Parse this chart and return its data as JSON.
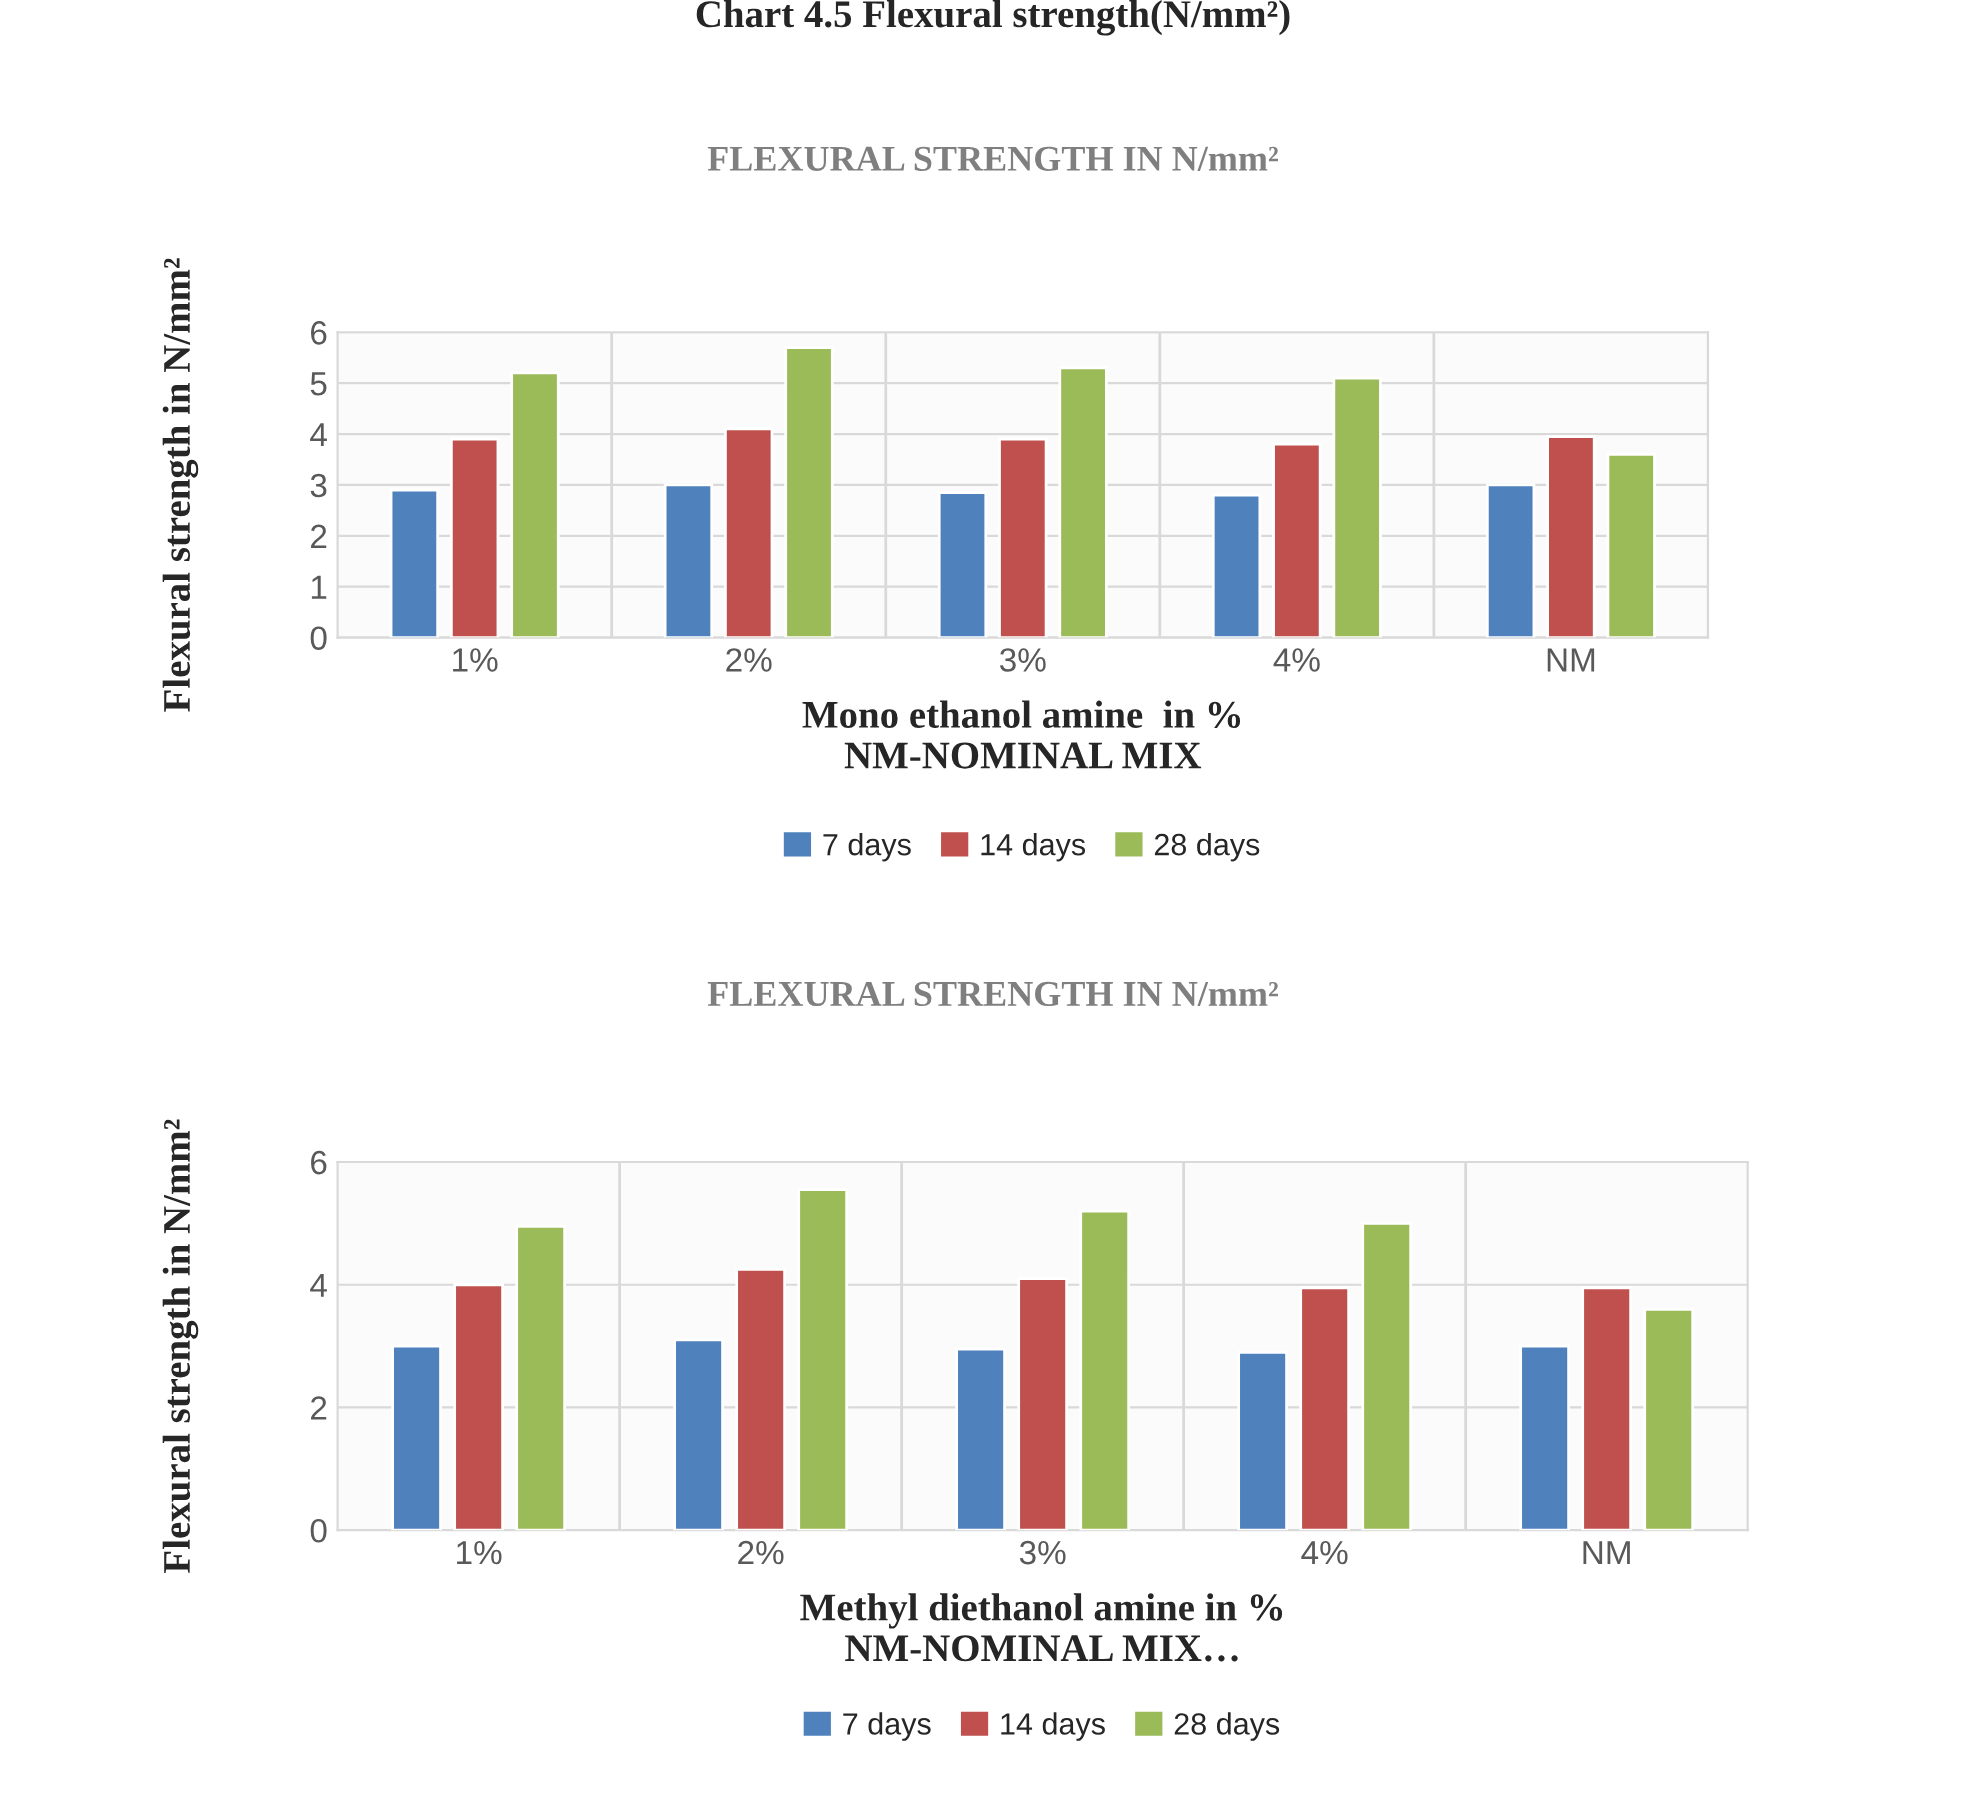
{
  "chart_data": [
    {
      "type": "bar",
      "title": "FLEXURAL STRENGTH IN N/mm²",
      "xlabel": "Mono ethanol amine  in %\nNM-NOMINAL MIX",
      "ylabel": "Flexural strength in N/mm²",
      "annotations": [
        "Chart 4.5 Flexural strength(N/mm²)"
      ],
      "categories": [
        "1%",
        "2%",
        "3%",
        "4%",
        "NM"
      ],
      "series": [
        {
          "name": "7 days",
          "color": "#4f81bd",
          "values": [
            2.9,
            3.0,
            2.85,
            2.8,
            3.0
          ]
        },
        {
          "name": "14 days",
          "color": "#c0504d",
          "values": [
            3.9,
            4.1,
            3.9,
            3.8,
            3.95
          ]
        },
        {
          "name": "28 days",
          "color": "#9bbb59",
          "values": [
            5.2,
            5.7,
            5.3,
            5.1,
            3.6
          ]
        }
      ],
      "ylim": [
        0,
        6
      ],
      "yticks": [
        0,
        1,
        2,
        3,
        4,
        5,
        6
      ],
      "grid": true,
      "legend": "bottom"
    },
    {
      "type": "bar",
      "title": "FLEXURAL STRENGTH IN N/mm²",
      "xlabel": "Methyl diethanol amine in %\nNM-NOMINAL MIX…",
      "ylabel": "Flexural strength in N/mm²",
      "categories": [
        "1%",
        "2%",
        "3%",
        "4%",
        "NM"
      ],
      "series": [
        {
          "name": "7 days",
          "color": "#4f81bd",
          "values": [
            3.0,
            3.1,
            2.95,
            2.9,
            3.0
          ]
        },
        {
          "name": "14 days",
          "color": "#c0504d",
          "values": [
            4.0,
            4.25,
            4.1,
            3.95,
            3.95
          ]
        },
        {
          "name": "28 days",
          "color": "#9bbb59",
          "values": [
            4.95,
            5.55,
            5.2,
            5.0,
            3.6
          ]
        }
      ],
      "ylim": [
        0,
        6
      ],
      "yticks": [
        0,
        2,
        4,
        6
      ],
      "grid": true,
      "legend": "bottom"
    }
  ]
}
